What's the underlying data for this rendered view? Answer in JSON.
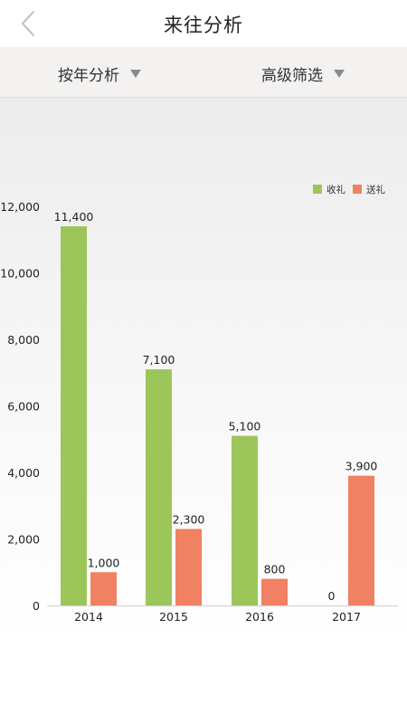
{
  "header": {
    "title": "来往分析"
  },
  "filters": {
    "by_year": "按年分析",
    "advanced": "高级筛选"
  },
  "colors": {
    "received": "#9dc65a",
    "sent": "#f08162"
  },
  "chart_data": {
    "type": "bar",
    "categories": [
      "2014",
      "2015",
      "2016",
      "2017"
    ],
    "series": [
      {
        "name": "收礼",
        "values": [
          11400,
          7100,
          5100,
          0
        ]
      },
      {
        "name": "送礼",
        "values": [
          1000,
          2300,
          800,
          3900
        ]
      }
    ],
    "data_labels": [
      [
        "11,400",
        "7,100",
        "5,100",
        "0"
      ],
      [
        "1,000",
        "2,300",
        "800",
        "3,900"
      ]
    ],
    "yticks": [
      "0",
      "2,000",
      "4,000",
      "6,000",
      "8,000",
      "10,000",
      "12,000"
    ],
    "ylim": [
      0,
      12000
    ],
    "legend_position": "top-right",
    "grid": false
  }
}
